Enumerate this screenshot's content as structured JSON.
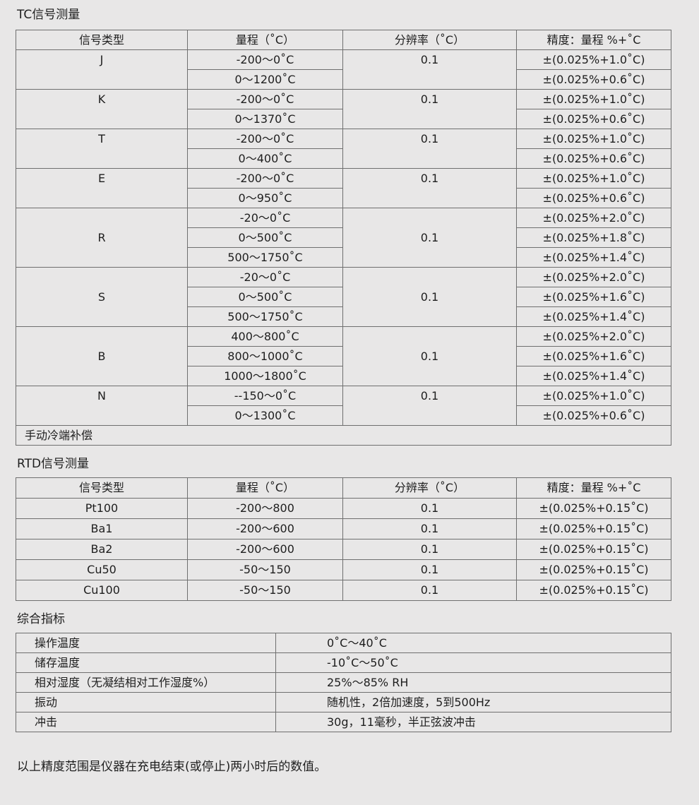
{
  "tc": {
    "title": "TC信号测量",
    "headers": [
      "信号类型",
      "量程（˚C）",
      "分辨率（˚C）",
      "精度：量程 %+˚C"
    ],
    "groups": [
      {
        "type": "J",
        "resolution": "0.1",
        "ranges": [
          "-200～0˚C",
          "0～1200˚C"
        ],
        "accuracy": [
          "±(0.025%+1.0˚C)",
          "±(0.025%+0.6˚C)"
        ]
      },
      {
        "type": "K",
        "resolution": "0.1",
        "ranges": [
          "-200～0˚C",
          "0～1370˚C"
        ],
        "accuracy": [
          "±(0.025%+1.0˚C)",
          "±(0.025%+0.6˚C)"
        ]
      },
      {
        "type": "T",
        "resolution": "0.1",
        "ranges": [
          "-200～0˚C",
          "0～400˚C"
        ],
        "accuracy": [
          "±(0.025%+1.0˚C)",
          "±(0.025%+0.6˚C)"
        ]
      },
      {
        "type": "E",
        "resolution": "0.1",
        "ranges": [
          "-200～0˚C",
          "0～950˚C"
        ],
        "accuracy": [
          "±(0.025%+1.0˚C)",
          "±(0.025%+0.6˚C)"
        ]
      },
      {
        "type": "R",
        "resolution": "0.1",
        "ranges": [
          "-20～0˚C",
          "0～500˚C",
          "500～1750˚C"
        ],
        "accuracy": [
          "±(0.025%+2.0˚C)",
          "±(0.025%+1.8˚C)",
          "±(0.025%+1.4˚C)"
        ]
      },
      {
        "type": "S",
        "resolution": "0.1",
        "ranges": [
          "-20～0˚C",
          "0～500˚C",
          "500～1750˚C"
        ],
        "accuracy": [
          "±(0.025%+2.0˚C)",
          "±(0.025%+1.6˚C)",
          "±(0.025%+1.4˚C)"
        ]
      },
      {
        "type": "B",
        "resolution": "0.1",
        "ranges": [
          "400～800˚C",
          "800～1000˚C",
          "1000～1800˚C"
        ],
        "accuracy": [
          "±(0.025%+2.0˚C)",
          "±(0.025%+1.6˚C)",
          "±(0.025%+1.4˚C)"
        ]
      },
      {
        "type": "N",
        "resolution": "0.1",
        "ranges": [
          "--150～0˚C",
          "0～1300˚C"
        ],
        "accuracy": [
          "±(0.025%+1.0˚C)",
          "±(0.025%+0.6˚C)"
        ]
      }
    ],
    "footer": "手动冷端补偿"
  },
  "rtd": {
    "title": "RTD信号测量",
    "headers": [
      "信号类型",
      "量程（˚C）",
      "分辨率（˚C）",
      "精度：量程 %+˚C"
    ],
    "rows": [
      [
        "Pt100",
        "-200～800",
        "0.1",
        "±(0.025%+0.15˚C)"
      ],
      [
        "Ba1",
        "-200～600",
        "0.1",
        "±(0.025%+0.15˚C)"
      ],
      [
        "Ba2",
        "-200～600",
        "0.1",
        "±(0.025%+0.15˚C)"
      ],
      [
        "Cu50",
        "-50～150",
        "0.1",
        "±(0.025%+0.15˚C)"
      ],
      [
        "Cu100",
        "-50～150",
        "0.1",
        "±(0.025%+0.15˚C)"
      ]
    ]
  },
  "summary": {
    "title": "综合指标",
    "rows": [
      [
        "操作温度",
        "0˚C～40˚C"
      ],
      [
        "储存温度",
        "-10˚C～50˚C"
      ],
      [
        "相对湿度（无凝结相对工作湿度%）",
        "25%～85% RH"
      ],
      [
        "振动",
        "随机性，2倍加速度，5到500Hz"
      ],
      [
        "冲击",
        "30g，11毫秒，半正弦波冲击"
      ]
    ]
  },
  "note": "以上精度范围是仪器在充电结束(或停止)两小时后的数值。"
}
